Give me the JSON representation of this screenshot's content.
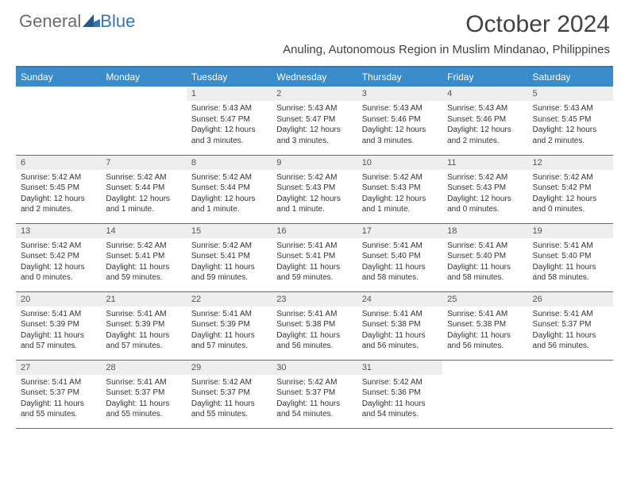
{
  "brand": {
    "part1": "General",
    "part2": "Blue"
  },
  "title": "October 2024",
  "location": "Anuling, Autonomous Region in Muslim Mindanao, Philippines",
  "colors": {
    "header_bg": "#3a8bc9",
    "header_border": "#2f76ba",
    "daynum_bg": "#eeeeee",
    "text": "#333333",
    "brand_gray": "#6b6b6b",
    "brand_blue": "#2f76ba"
  },
  "typography": {
    "title_fontsize": 30,
    "location_fontsize": 15,
    "dayheader_fontsize": 12,
    "daynum_fontsize": 11,
    "cell_fontsize": 10
  },
  "day_headers": [
    "Sunday",
    "Monday",
    "Tuesday",
    "Wednesday",
    "Thursday",
    "Friday",
    "Saturday"
  ],
  "weeks": [
    [
      {
        "n": "",
        "sunrise": "",
        "sunset": "",
        "daylight": ""
      },
      {
        "n": "",
        "sunrise": "",
        "sunset": "",
        "daylight": ""
      },
      {
        "n": "1",
        "sunrise": "Sunrise: 5:43 AM",
        "sunset": "Sunset: 5:47 PM",
        "daylight": "Daylight: 12 hours and 3 minutes."
      },
      {
        "n": "2",
        "sunrise": "Sunrise: 5:43 AM",
        "sunset": "Sunset: 5:47 PM",
        "daylight": "Daylight: 12 hours and 3 minutes."
      },
      {
        "n": "3",
        "sunrise": "Sunrise: 5:43 AM",
        "sunset": "Sunset: 5:46 PM",
        "daylight": "Daylight: 12 hours and 3 minutes."
      },
      {
        "n": "4",
        "sunrise": "Sunrise: 5:43 AM",
        "sunset": "Sunset: 5:46 PM",
        "daylight": "Daylight: 12 hours and 2 minutes."
      },
      {
        "n": "5",
        "sunrise": "Sunrise: 5:43 AM",
        "sunset": "Sunset: 5:45 PM",
        "daylight": "Daylight: 12 hours and 2 minutes."
      }
    ],
    [
      {
        "n": "6",
        "sunrise": "Sunrise: 5:42 AM",
        "sunset": "Sunset: 5:45 PM",
        "daylight": "Daylight: 12 hours and 2 minutes."
      },
      {
        "n": "7",
        "sunrise": "Sunrise: 5:42 AM",
        "sunset": "Sunset: 5:44 PM",
        "daylight": "Daylight: 12 hours and 1 minute."
      },
      {
        "n": "8",
        "sunrise": "Sunrise: 5:42 AM",
        "sunset": "Sunset: 5:44 PM",
        "daylight": "Daylight: 12 hours and 1 minute."
      },
      {
        "n": "9",
        "sunrise": "Sunrise: 5:42 AM",
        "sunset": "Sunset: 5:43 PM",
        "daylight": "Daylight: 12 hours and 1 minute."
      },
      {
        "n": "10",
        "sunrise": "Sunrise: 5:42 AM",
        "sunset": "Sunset: 5:43 PM",
        "daylight": "Daylight: 12 hours and 1 minute."
      },
      {
        "n": "11",
        "sunrise": "Sunrise: 5:42 AM",
        "sunset": "Sunset: 5:43 PM",
        "daylight": "Daylight: 12 hours and 0 minutes."
      },
      {
        "n": "12",
        "sunrise": "Sunrise: 5:42 AM",
        "sunset": "Sunset: 5:42 PM",
        "daylight": "Daylight: 12 hours and 0 minutes."
      }
    ],
    [
      {
        "n": "13",
        "sunrise": "Sunrise: 5:42 AM",
        "sunset": "Sunset: 5:42 PM",
        "daylight": "Daylight: 12 hours and 0 minutes."
      },
      {
        "n": "14",
        "sunrise": "Sunrise: 5:42 AM",
        "sunset": "Sunset: 5:41 PM",
        "daylight": "Daylight: 11 hours and 59 minutes."
      },
      {
        "n": "15",
        "sunrise": "Sunrise: 5:42 AM",
        "sunset": "Sunset: 5:41 PM",
        "daylight": "Daylight: 11 hours and 59 minutes."
      },
      {
        "n": "16",
        "sunrise": "Sunrise: 5:41 AM",
        "sunset": "Sunset: 5:41 PM",
        "daylight": "Daylight: 11 hours and 59 minutes."
      },
      {
        "n": "17",
        "sunrise": "Sunrise: 5:41 AM",
        "sunset": "Sunset: 5:40 PM",
        "daylight": "Daylight: 11 hours and 58 minutes."
      },
      {
        "n": "18",
        "sunrise": "Sunrise: 5:41 AM",
        "sunset": "Sunset: 5:40 PM",
        "daylight": "Daylight: 11 hours and 58 minutes."
      },
      {
        "n": "19",
        "sunrise": "Sunrise: 5:41 AM",
        "sunset": "Sunset: 5:40 PM",
        "daylight": "Daylight: 11 hours and 58 minutes."
      }
    ],
    [
      {
        "n": "20",
        "sunrise": "Sunrise: 5:41 AM",
        "sunset": "Sunset: 5:39 PM",
        "daylight": "Daylight: 11 hours and 57 minutes."
      },
      {
        "n": "21",
        "sunrise": "Sunrise: 5:41 AM",
        "sunset": "Sunset: 5:39 PM",
        "daylight": "Daylight: 11 hours and 57 minutes."
      },
      {
        "n": "22",
        "sunrise": "Sunrise: 5:41 AM",
        "sunset": "Sunset: 5:39 PM",
        "daylight": "Daylight: 11 hours and 57 minutes."
      },
      {
        "n": "23",
        "sunrise": "Sunrise: 5:41 AM",
        "sunset": "Sunset: 5:38 PM",
        "daylight": "Daylight: 11 hours and 56 minutes."
      },
      {
        "n": "24",
        "sunrise": "Sunrise: 5:41 AM",
        "sunset": "Sunset: 5:38 PM",
        "daylight": "Daylight: 11 hours and 56 minutes."
      },
      {
        "n": "25",
        "sunrise": "Sunrise: 5:41 AM",
        "sunset": "Sunset: 5:38 PM",
        "daylight": "Daylight: 11 hours and 56 minutes."
      },
      {
        "n": "26",
        "sunrise": "Sunrise: 5:41 AM",
        "sunset": "Sunset: 5:37 PM",
        "daylight": "Daylight: 11 hours and 56 minutes."
      }
    ],
    [
      {
        "n": "27",
        "sunrise": "Sunrise: 5:41 AM",
        "sunset": "Sunset: 5:37 PM",
        "daylight": "Daylight: 11 hours and 55 minutes."
      },
      {
        "n": "28",
        "sunrise": "Sunrise: 5:41 AM",
        "sunset": "Sunset: 5:37 PM",
        "daylight": "Daylight: 11 hours and 55 minutes."
      },
      {
        "n": "29",
        "sunrise": "Sunrise: 5:42 AM",
        "sunset": "Sunset: 5:37 PM",
        "daylight": "Daylight: 11 hours and 55 minutes."
      },
      {
        "n": "30",
        "sunrise": "Sunrise: 5:42 AM",
        "sunset": "Sunset: 5:37 PM",
        "daylight": "Daylight: 11 hours and 54 minutes."
      },
      {
        "n": "31",
        "sunrise": "Sunrise: 5:42 AM",
        "sunset": "Sunset: 5:36 PM",
        "daylight": "Daylight: 11 hours and 54 minutes."
      },
      {
        "n": "",
        "sunrise": "",
        "sunset": "",
        "daylight": ""
      },
      {
        "n": "",
        "sunrise": "",
        "sunset": "",
        "daylight": ""
      }
    ]
  ]
}
